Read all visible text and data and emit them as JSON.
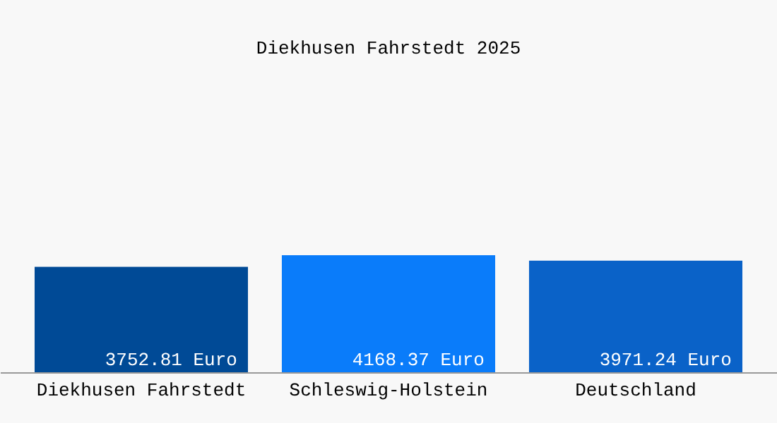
{
  "chart_data": {
    "type": "bar",
    "title": "Diekhusen Fahrstedt 2025",
    "categories": [
      "Diekhusen Fahrstedt",
      "Schleswig-Holstein",
      "Deutschland"
    ],
    "values": [
      3752.81,
      4168.37,
      3971.24
    ],
    "colors": [
      "#004a96",
      "#0a7cfa",
      "#0a62c8"
    ],
    "value_labels": [
      "3752.81 Euro",
      "4168.37 Euro",
      "3971.24 Euro"
    ],
    "tick_labels": "x",
    "legend": false
  }
}
